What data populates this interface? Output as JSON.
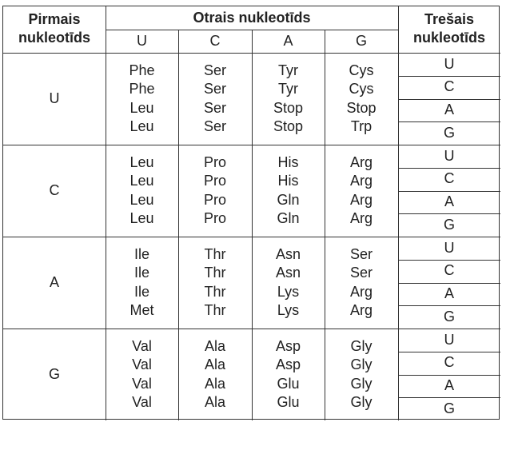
{
  "headers": {
    "first": [
      "Pirmais",
      "nukleotīds"
    ],
    "second": "Otrais nukleotīds",
    "third": [
      "Trešais",
      "nukleotīds"
    ]
  },
  "second_bases": [
    "U",
    "C",
    "A",
    "G"
  ],
  "rows": [
    {
      "first": "U",
      "cols": [
        [
          "Phe",
          "Phe",
          "Leu",
          "Leu"
        ],
        [
          "Ser",
          "Ser",
          "Ser",
          "Ser"
        ],
        [
          "Tyr",
          "Tyr",
          "Stop",
          "Stop"
        ],
        [
          "Cys",
          "Cys",
          "Stop",
          "Trp"
        ]
      ],
      "third": [
        "U",
        "C",
        "A",
        "G"
      ]
    },
    {
      "first": "C",
      "cols": [
        [
          "Leu",
          "Leu",
          "Leu",
          "Leu"
        ],
        [
          "Pro",
          "Pro",
          "Pro",
          "Pro"
        ],
        [
          "His",
          "His",
          "Gln",
          "Gln"
        ],
        [
          "Arg",
          "Arg",
          "Arg",
          "Arg"
        ]
      ],
      "third": [
        "U",
        "C",
        "A",
        "G"
      ]
    },
    {
      "first": "A",
      "cols": [
        [
          "Ile",
          "Ile",
          "Ile",
          "Met"
        ],
        [
          "Thr",
          "Thr",
          "Thr",
          "Thr"
        ],
        [
          "Asn",
          "Asn",
          "Lys",
          "Lys"
        ],
        [
          "Ser",
          "Ser",
          "Arg",
          "Arg"
        ]
      ],
      "third": [
        "U",
        "C",
        "A",
        "G"
      ]
    },
    {
      "first": "G",
      "cols": [
        [
          "Val",
          "Val",
          "Val",
          "Val"
        ],
        [
          "Ala",
          "Ala",
          "Ala",
          "Ala"
        ],
        [
          "Asp",
          "Asp",
          "Glu",
          "Glu"
        ],
        [
          "Gly",
          "Gly",
          "Gly",
          "Gly"
        ]
      ],
      "third": [
        "U",
        "C",
        "A",
        "G"
      ]
    }
  ]
}
